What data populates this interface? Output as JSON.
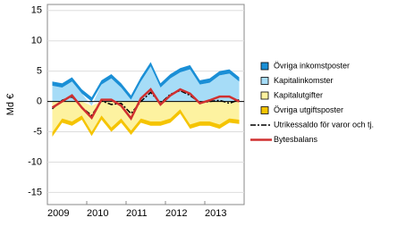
{
  "chart_data": {
    "type": "area",
    "y_label": "Md €",
    "categories": [
      "2009",
      null,
      null,
      null,
      "2010",
      null,
      null,
      null,
      "2011",
      null,
      null,
      null,
      "2012",
      null,
      null,
      null,
      "2013",
      null,
      null,
      null
    ],
    "ylim": [
      -17,
      16
    ],
    "yticks": [
      15,
      10,
      5,
      0,
      -5,
      -10,
      -15
    ],
    "grid": true,
    "legend": "right",
    "series": [
      {
        "name": "Kapitalinkomster",
        "color": "#a6dcf7",
        "kind": "area",
        "values": [
          2.6,
          2.3,
          3.3,
          1.3,
          -0.7,
          2.8,
          3.8,
          2.3,
          0.3,
          3.3,
          5.8,
          2.3,
          3.8,
          4.8,
          5.3,
          2.8,
          3.1,
          4.3,
          4.6,
          3.3
        ]
      },
      {
        "name": "Övriga inkomstposter",
        "color": "#1a8fd6",
        "kind": "area",
        "values": [
          0.7,
          0.7,
          0.7,
          0.7,
          0.7,
          0.7,
          0.7,
          0.7,
          0.7,
          0.7,
          0.7,
          0.7,
          0.7,
          0.7,
          0.7,
          0.7,
          0.7,
          0.7,
          0.7,
          0.7
        ]
      },
      {
        "name": "Kapitalutgifter",
        "color": "#fdf2a0",
        "kind": "area",
        "values": [
          -5.1,
          -2.8,
          -3.3,
          -2.3,
          -4.3,
          -2.3,
          -4.3,
          -2.8,
          -4.8,
          -2.8,
          -3.3,
          -3.3,
          -2.8,
          -1.3,
          -3.8,
          -3.3,
          -3.3,
          -3.8,
          -2.8,
          -3.0
        ]
      },
      {
        "name": "Övriga utgiftsposter",
        "color": "#f5c400",
        "kind": "area",
        "values": [
          -0.7,
          -0.7,
          -0.7,
          -0.7,
          -0.7,
          -0.7,
          -0.7,
          -0.7,
          -0.7,
          -0.7,
          -0.7,
          -0.7,
          -0.7,
          -0.7,
          -0.7,
          -0.7,
          -0.7,
          -0.7,
          -0.7,
          -0.7
        ]
      },
      {
        "name": "Utrikessaldo för varor och tj.",
        "color": "#000000",
        "kind": "dashdot",
        "values": [
          -1.2,
          0.2,
          0.8,
          -1,
          -2.3,
          0.1,
          -0.5,
          -0.3,
          -2,
          0,
          1.5,
          -0.3,
          1.2,
          1.8,
          1,
          -0.2,
          0,
          0.2,
          -0.3,
          0.3
        ]
      },
      {
        "name": "Bytesbalans",
        "color": "#d03030",
        "kind": "line",
        "values": [
          -1,
          0,
          1,
          -1,
          -2.7,
          0.3,
          0.3,
          -0.7,
          -2.8,
          0.5,
          2,
          -0.5,
          1,
          2,
          1.3,
          -0.3,
          0.2,
          0.8,
          0.8,
          0
        ]
      }
    ]
  }
}
